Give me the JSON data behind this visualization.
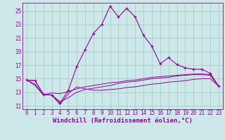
{
  "xlabel": "Windchill (Refroidissement éolien,°C)",
  "x": [
    0,
    1,
    2,
    3,
    4,
    5,
    6,
    7,
    8,
    9,
    10,
    11,
    12,
    13,
    14,
    15,
    16,
    17,
    18,
    19,
    20,
    21,
    22,
    23
  ],
  "temp": [
    14.8,
    14.7,
    12.7,
    12.6,
    11.4,
    13.3,
    16.8,
    19.3,
    21.7,
    23.0,
    25.7,
    24.1,
    25.4,
    24.1,
    21.4,
    19.8,
    17.2,
    18.1,
    17.1,
    16.6,
    16.4,
    16.4,
    15.8,
    13.9
  ],
  "windchill1": [
    14.8,
    14.7,
    12.7,
    12.6,
    11.2,
    12.8,
    13.8,
    13.5,
    13.3,
    13.3,
    13.4,
    13.5,
    13.7,
    13.8,
    14.0,
    14.2,
    14.3,
    14.5,
    14.6,
    14.7,
    14.9,
    15.0,
    15.0,
    13.9
  ],
  "windchill2": [
    14.8,
    14.2,
    12.6,
    12.6,
    11.6,
    12.2,
    13.0,
    13.4,
    13.6,
    13.8,
    14.0,
    14.3,
    14.5,
    14.6,
    14.8,
    15.0,
    15.1,
    15.2,
    15.4,
    15.5,
    15.6,
    15.6,
    15.5,
    13.9
  ],
  "windchill3": [
    14.8,
    14.0,
    12.6,
    12.9,
    12.8,
    13.1,
    13.5,
    13.8,
    14.0,
    14.2,
    14.4,
    14.5,
    14.7,
    14.8,
    15.0,
    15.2,
    15.3,
    15.4,
    15.5,
    15.6,
    15.7,
    15.7,
    15.6,
    13.9
  ],
  "ylim": [
    10.5,
    26.2
  ],
  "yticks": [
    11,
    13,
    15,
    17,
    19,
    21,
    23,
    25
  ],
  "color": "#990099",
  "bg_color": "#cce8e8",
  "grid_color": "#aacccc",
  "label_fontsize": 6.5,
  "tick_fontsize": 5.5
}
